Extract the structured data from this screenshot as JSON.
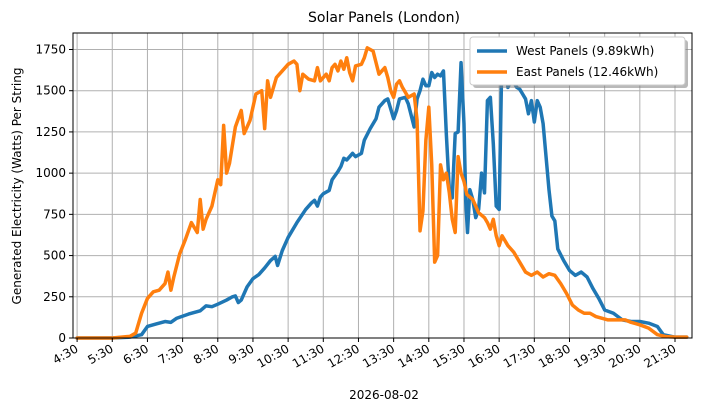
{
  "chart_data": {
    "type": "line",
    "title": "Solar Panels (London)",
    "xlabel": "2026-08-02",
    "ylabel": "Generated Electricity (Watts) Per String",
    "xlim": [
      "04:23",
      "21:59"
    ],
    "ylim": [
      0,
      1850
    ],
    "x_ticks": [
      "4:30",
      "5:30",
      "6:30",
      "7:30",
      "8:30",
      "9:30",
      "10:30",
      "11:30",
      "12:30",
      "13:30",
      "14:30",
      "15:30",
      "16:30",
      "17:30",
      "18:30",
      "19:30",
      "20:30",
      "21:30"
    ],
    "y_ticks": [
      0,
      250,
      500,
      750,
      1000,
      1250,
      1500,
      1750
    ],
    "grid": true,
    "legend_position": "top-right",
    "series": [
      {
        "name": "West Panels (9.89kWh)",
        "color": "#1f77b4",
        "points": [
          [
            "04:30",
            0
          ],
          [
            "05:30",
            0
          ],
          [
            "06:00",
            5
          ],
          [
            "06:20",
            20
          ],
          [
            "06:30",
            70
          ],
          [
            "06:45",
            85
          ],
          [
            "07:00",
            100
          ],
          [
            "07:10",
            95
          ],
          [
            "07:20",
            120
          ],
          [
            "07:40",
            145
          ],
          [
            "08:00",
            165
          ],
          [
            "08:10",
            195
          ],
          [
            "08:20",
            190
          ],
          [
            "08:30",
            205
          ],
          [
            "08:45",
            230
          ],
          [
            "08:55",
            250
          ],
          [
            "09:00",
            255
          ],
          [
            "09:05",
            215
          ],
          [
            "09:10",
            230
          ],
          [
            "09:20",
            310
          ],
          [
            "09:30",
            360
          ],
          [
            "09:40",
            385
          ],
          [
            "09:50",
            425
          ],
          [
            "10:00",
            470
          ],
          [
            "10:08",
            495
          ],
          [
            "10:12",
            440
          ],
          [
            "10:20",
            530
          ],
          [
            "10:30",
            610
          ],
          [
            "10:45",
            700
          ],
          [
            "11:00",
            780
          ],
          [
            "11:10",
            820
          ],
          [
            "11:15",
            835
          ],
          [
            "11:20",
            800
          ],
          [
            "11:25",
            855
          ],
          [
            "11:30",
            875
          ],
          [
            "11:40",
            895
          ],
          [
            "11:45",
            960
          ],
          [
            "11:55",
            1010
          ],
          [
            "12:00",
            1040
          ],
          [
            "12:05",
            1090
          ],
          [
            "12:10",
            1080
          ],
          [
            "12:20",
            1120
          ],
          [
            "12:25",
            1100
          ],
          [
            "12:35",
            1120
          ],
          [
            "12:40",
            1200
          ],
          [
            "12:50",
            1270
          ],
          [
            "13:00",
            1330
          ],
          [
            "13:05",
            1400
          ],
          [
            "13:15",
            1440
          ],
          [
            "13:20",
            1450
          ],
          [
            "13:25",
            1390
          ],
          [
            "13:30",
            1330
          ],
          [
            "13:35",
            1380
          ],
          [
            "13:40",
            1450
          ],
          [
            "13:50",
            1460
          ],
          [
            "13:55",
            1420
          ],
          [
            "14:00",
            1350
          ],
          [
            "14:05",
            1280
          ],
          [
            "14:10",
            1450
          ],
          [
            "14:15",
            1500
          ],
          [
            "14:20",
            1570
          ],
          [
            "14:25",
            1530
          ],
          [
            "14:30",
            1530
          ],
          [
            "14:35",
            1610
          ],
          [
            "14:40",
            1580
          ],
          [
            "14:45",
            1600
          ],
          [
            "14:50",
            1590
          ],
          [
            "14:55",
            1620
          ],
          [
            "15:00",
            1230
          ],
          [
            "15:05",
            900
          ],
          [
            "15:10",
            850
          ],
          [
            "15:15",
            1240
          ],
          [
            "15:20",
            1250
          ],
          [
            "15:25",
            1670
          ],
          [
            "15:30",
            1300
          ],
          [
            "15:33",
            830
          ],
          [
            "15:36",
            640
          ],
          [
            "15:40",
            900
          ],
          [
            "15:45",
            840
          ],
          [
            "15:50",
            730
          ],
          [
            "15:55",
            780
          ],
          [
            "16:00",
            1000
          ],
          [
            "16:05",
            880
          ],
          [
            "16:10",
            1440
          ],
          [
            "16:15",
            1460
          ],
          [
            "16:20",
            1180
          ],
          [
            "16:25",
            800
          ],
          [
            "16:30",
            780
          ],
          [
            "16:35",
            1770
          ],
          [
            "16:40",
            1700
          ],
          [
            "16:45",
            1520
          ],
          [
            "16:50",
            1560
          ],
          [
            "16:55",
            1550
          ],
          [
            "17:00",
            1520
          ],
          [
            "17:05",
            1510
          ],
          [
            "17:10",
            1480
          ],
          [
            "17:15",
            1450
          ],
          [
            "17:20",
            1360
          ],
          [
            "17:25",
            1440
          ],
          [
            "17:30",
            1310
          ],
          [
            "17:35",
            1440
          ],
          [
            "17:40",
            1400
          ],
          [
            "17:45",
            1300
          ],
          [
            "17:50",
            1100
          ],
          [
            "17:55",
            900
          ],
          [
            "18:00",
            740
          ],
          [
            "18:05",
            710
          ],
          [
            "18:10",
            540
          ],
          [
            "18:20",
            470
          ],
          [
            "18:30",
            410
          ],
          [
            "18:40",
            380
          ],
          [
            "18:50",
            400
          ],
          [
            "19:00",
            370
          ],
          [
            "19:10",
            300
          ],
          [
            "19:20",
            240
          ],
          [
            "19:30",
            170
          ],
          [
            "19:45",
            150
          ],
          [
            "20:00",
            110
          ],
          [
            "20:15",
            100
          ],
          [
            "20:30",
            100
          ],
          [
            "20:45",
            90
          ],
          [
            "21:00",
            70
          ],
          [
            "21:10",
            20
          ],
          [
            "21:30",
            5
          ],
          [
            "21:50",
            5
          ]
        ]
      },
      {
        "name": "East Panels (12.46kWh)",
        "color": "#ff7f0e",
        "points": [
          [
            "04:30",
            0
          ],
          [
            "05:30",
            0
          ],
          [
            "06:00",
            10
          ],
          [
            "06:10",
            30
          ],
          [
            "06:20",
            150
          ],
          [
            "06:30",
            240
          ],
          [
            "06:40",
            280
          ],
          [
            "06:50",
            290
          ],
          [
            "07:00",
            330
          ],
          [
            "07:05",
            400
          ],
          [
            "07:10",
            290
          ],
          [
            "07:15",
            370
          ],
          [
            "07:25",
            510
          ],
          [
            "07:35",
            600
          ],
          [
            "07:45",
            700
          ],
          [
            "07:55",
            640
          ],
          [
            "08:00",
            840
          ],
          [
            "08:05",
            660
          ],
          [
            "08:10",
            720
          ],
          [
            "08:20",
            800
          ],
          [
            "08:30",
            960
          ],
          [
            "08:35",
            930
          ],
          [
            "08:40",
            1290
          ],
          [
            "08:45",
            1000
          ],
          [
            "08:50",
            1060
          ],
          [
            "09:00",
            1280
          ],
          [
            "09:10",
            1380
          ],
          [
            "09:15",
            1240
          ],
          [
            "09:25",
            1320
          ],
          [
            "09:35",
            1480
          ],
          [
            "09:45",
            1500
          ],
          [
            "09:50",
            1270
          ],
          [
            "09:55",
            1560
          ],
          [
            "10:00",
            1460
          ],
          [
            "10:10",
            1580
          ],
          [
            "10:20",
            1620
          ],
          [
            "10:30",
            1660
          ],
          [
            "10:40",
            1680
          ],
          [
            "10:45",
            1660
          ],
          [
            "10:50",
            1500
          ],
          [
            "10:55",
            1600
          ],
          [
            "11:05",
            1570
          ],
          [
            "11:15",
            1560
          ],
          [
            "11:20",
            1640
          ],
          [
            "11:25",
            1560
          ],
          [
            "11:35",
            1600
          ],
          [
            "11:40",
            1560
          ],
          [
            "11:45",
            1640
          ],
          [
            "11:50",
            1660
          ],
          [
            "11:55",
            1620
          ],
          [
            "12:00",
            1680
          ],
          [
            "12:05",
            1630
          ],
          [
            "12:10",
            1700
          ],
          [
            "12:15",
            1610
          ],
          [
            "12:20",
            1560
          ],
          [
            "12:25",
            1650
          ],
          [
            "12:35",
            1660
          ],
          [
            "12:40",
            1700
          ],
          [
            "12:45",
            1760
          ],
          [
            "12:55",
            1740
          ],
          [
            "13:05",
            1600
          ],
          [
            "13:15",
            1640
          ],
          [
            "13:20",
            1580
          ],
          [
            "13:25",
            1500
          ],
          [
            "13:30",
            1460
          ],
          [
            "13:35",
            1540
          ],
          [
            "13:40",
            1560
          ],
          [
            "13:45",
            1520
          ],
          [
            "13:55",
            1460
          ],
          [
            "14:05",
            1480
          ],
          [
            "14:10",
            1320
          ],
          [
            "14:15",
            650
          ],
          [
            "14:20",
            770
          ],
          [
            "14:25",
            1200
          ],
          [
            "14:30",
            1400
          ],
          [
            "14:35",
            1050
          ],
          [
            "14:40",
            460
          ],
          [
            "14:45",
            500
          ],
          [
            "14:50",
            1050
          ],
          [
            "14:55",
            960
          ],
          [
            "15:00",
            1000
          ],
          [
            "15:05",
            880
          ],
          [
            "15:10",
            720
          ],
          [
            "15:15",
            640
          ],
          [
            "15:20",
            1100
          ],
          [
            "15:25",
            1000
          ],
          [
            "15:30",
            950
          ],
          [
            "15:35",
            870
          ],
          [
            "15:45",
            840
          ],
          [
            "15:55",
            760
          ],
          [
            "16:05",
            730
          ],
          [
            "16:10",
            700
          ],
          [
            "16:15",
            660
          ],
          [
            "16:20",
            720
          ],
          [
            "16:25",
            620
          ],
          [
            "16:30",
            560
          ],
          [
            "16:35",
            620
          ],
          [
            "16:45",
            560
          ],
          [
            "16:55",
            520
          ],
          [
            "17:05",
            460
          ],
          [
            "17:15",
            400
          ],
          [
            "17:25",
            380
          ],
          [
            "17:35",
            400
          ],
          [
            "17:45",
            370
          ],
          [
            "17:55",
            390
          ],
          [
            "18:05",
            380
          ],
          [
            "18:15",
            330
          ],
          [
            "18:25",
            270
          ],
          [
            "18:35",
            200
          ],
          [
            "18:45",
            170
          ],
          [
            "18:55",
            150
          ],
          [
            "19:05",
            150
          ],
          [
            "19:15",
            130
          ],
          [
            "19:25",
            120
          ],
          [
            "19:35",
            110
          ],
          [
            "19:50",
            110
          ],
          [
            "20:05",
            110
          ],
          [
            "20:15",
            95
          ],
          [
            "20:30",
            80
          ],
          [
            "20:45",
            60
          ],
          [
            "21:00",
            20
          ],
          [
            "21:15",
            8
          ],
          [
            "21:30",
            5
          ],
          [
            "21:50",
            5
          ]
        ]
      }
    ]
  }
}
